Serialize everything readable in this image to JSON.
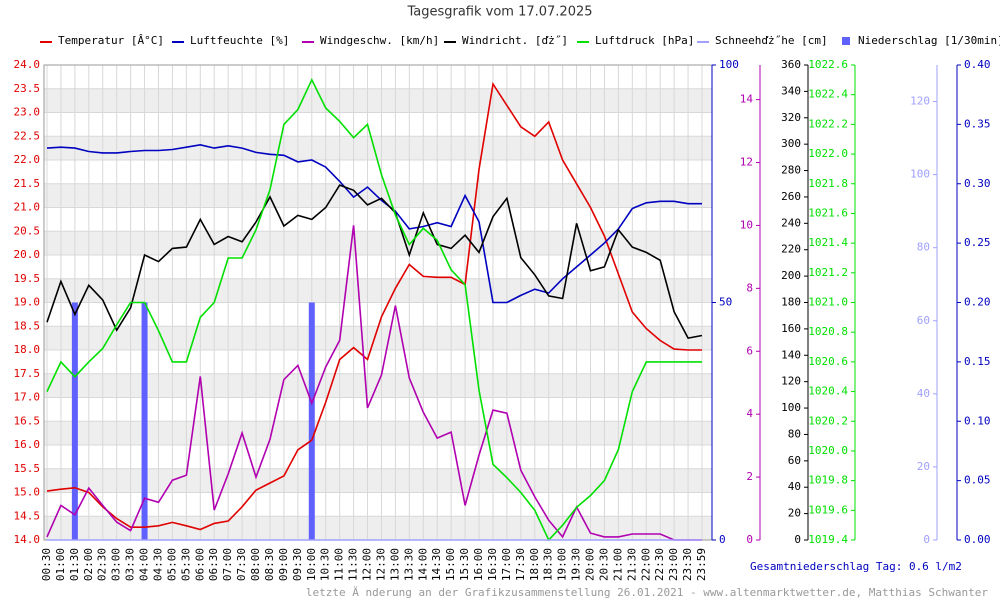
{
  "chart_data": {
    "type": "line",
    "title": "Tagesgrafik vom 17.07.2025",
    "total_label": "Gesamtniederschlag Tag: 0.6 l/m2",
    "footer": "letzte Ä nderung an der Grafikzusammenstellung 26.01.2021 - www.altenmarktwetter.de, Matthias Schwanter",
    "grid": true,
    "categories": [
      "00:30",
      "01:00",
      "01:30",
      "02:00",
      "02:30",
      "03:00",
      "03:30",
      "04:00",
      "04:30",
      "05:00",
      "05:30",
      "06:00",
      "06:30",
      "07:00",
      "07:30",
      "08:00",
      "08:30",
      "09:00",
      "09:30",
      "10:00",
      "10:30",
      "11:00",
      "11:30",
      "12:00",
      "12:30",
      "13:00",
      "13:30",
      "14:00",
      "14:30",
      "15:00",
      "15:30",
      "16:00",
      "16:30",
      "17:00",
      "17:30",
      "18:00",
      "18:30",
      "19:00",
      "19:30",
      "20:00",
      "20:30",
      "21:00",
      "21:30",
      "22:00",
      "22:30",
      "23:00",
      "23:30",
      "23:59"
    ],
    "ylim": [
      14,
      24
    ],
    "yticks": [
      {
        "value": 14,
        "label": "14.0"
      },
      {
        "value": 14.5,
        "label": "14.5"
      },
      {
        "value": 15,
        "label": "15.0"
      },
      {
        "value": 15.5,
        "label": "15.5"
      },
      {
        "value": 16,
        "label": "16.0"
      },
      {
        "value": 16.5,
        "label": "16.5"
      },
      {
        "value": 17,
        "label": "17.0"
      },
      {
        "value": 17.5,
        "label": "17.5"
      },
      {
        "value": 18,
        "label": "18.0"
      },
      {
        "value": 18.5,
        "label": "18.5"
      },
      {
        "value": 19,
        "label": "19.0"
      },
      {
        "value": 19.5,
        "label": "19.5"
      },
      {
        "value": 20,
        "label": "20.0"
      },
      {
        "value": 20.5,
        "label": "20.5"
      },
      {
        "value": 21,
        "label": "21.0"
      },
      {
        "value": 21.5,
        "label": "21.5"
      },
      {
        "value": 22,
        "label": "22.0"
      },
      {
        "value": 22.5,
        "label": "22.5"
      },
      {
        "value": 23,
        "label": "23.0"
      },
      {
        "value": 23.5,
        "label": "23.5"
      },
      {
        "value": 24,
        "label": "24.0"
      }
    ],
    "y2lim": [
      0,
      100
    ],
    "y2ticks": [
      0,
      50,
      100
    ],
    "y3lim": [
      0,
      15.1
    ],
    "y3ticks": [
      0,
      2,
      4,
      6,
      8,
      10,
      12,
      14
    ],
    "y4lim": [
      0,
      360
    ],
    "y4ticks": [
      0,
      20,
      40,
      60,
      80,
      100,
      120,
      140,
      160,
      180,
      200,
      220,
      240,
      260,
      280,
      300,
      320,
      340,
      360
    ],
    "y5lim": [
      1019.4,
      1022.6
    ],
    "y5ticks": [
      1019.4,
      1019.6,
      1019.8,
      {
        "value": 1020,
        "label": "1020.0"
      },
      1020.2,
      1020.4,
      1020.6,
      1020.8,
      {
        "value": 1021,
        "label": "1021.0"
      },
      1021.2,
      1021.4,
      1021.6,
      1021.8,
      {
        "value": 1022,
        "label": "1022.0"
      },
      1022.2,
      1022.4,
      1022.6
    ],
    "y6lim": [
      0,
      130
    ],
    "y6ticks": [
      0,
      20,
      40,
      60,
      80,
      100,
      120
    ],
    "y7lim": [
      0,
      0.4
    ],
    "y7ticks": [
      {
        "value": 0,
        "label": "0.00"
      },
      {
        "value": 0.05,
        "label": "0.05"
      },
      {
        "value": 0.1,
        "label": "0.10"
      },
      {
        "value": 0.15,
        "label": "0.15"
      },
      {
        "value": 0.2,
        "label": "0.20"
      },
      {
        "value": 0.25,
        "label": "0.25"
      },
      {
        "value": 0.3,
        "label": "0.30"
      },
      {
        "value": 0.35,
        "label": "0.35"
      },
      {
        "value": 0.4,
        "label": "0.40"
      }
    ],
    "series": [
      {
        "name": "Temperatur [Â°C]",
        "color": "#e00000",
        "axis": "y",
        "values": [
          15.03,
          15.07,
          15.1,
          15.0,
          14.7,
          14.45,
          14.27,
          14.27,
          14.3,
          14.37,
          14.3,
          14.22,
          14.35,
          14.4,
          14.7,
          15.05,
          15.2,
          15.35,
          15.9,
          16.1,
          16.9,
          17.8,
          18.05,
          17.8,
          18.7,
          19.3,
          19.8,
          19.55,
          19.53,
          19.53,
          19.38,
          21.8,
          23.6,
          23.15,
          22.7,
          22.5,
          22.8,
          22.0,
          21.5,
          21.0,
          20.4,
          19.6,
          18.8,
          18.45,
          18.2,
          18.02,
          18.0,
          18.0
        ]
      },
      {
        "name": "Luftfeuchte [%]",
        "color": "#0000c0",
        "axis": "y2",
        "values": [
          82.5,
          82.7,
          82.5,
          81.8,
          81.5,
          81.5,
          81.8,
          82.0,
          82.0,
          82.2,
          82.7,
          83.2,
          82.5,
          83.0,
          82.5,
          81.6,
          81.2,
          81.0,
          79.6,
          80.0,
          78.5,
          75.5,
          72.2,
          74.3,
          71.5,
          69.2,
          65.5,
          66.0,
          66.8,
          66.0,
          72.5,
          67.0,
          50.0,
          50.0,
          51.5,
          52.8,
          52.0,
          55.0,
          57.5,
          60.0,
          62.5,
          65.5,
          69.8,
          71.0,
          71.3,
          71.3,
          70.8,
          70.8
        ]
      },
      {
        "name": "Windgeschw. [km/h]",
        "color": "#b000b0",
        "axis": "y3",
        "values": [
          0.1,
          1.1,
          0.8,
          1.65,
          1.1,
          0.57,
          0.3,
          1.33,
          1.2,
          1.9,
          2.06,
          5.2,
          0.95,
          2.1,
          3.4,
          2.0,
          3.2,
          5.1,
          5.55,
          4.35,
          5.5,
          6.35,
          10.0,
          4.2,
          5.25,
          7.45,
          5.15,
          4.06,
          3.24,
          3.43,
          1.1,
          2.7,
          4.13,
          4.03,
          2.22,
          1.37,
          0.63,
          0.1,
          1.05,
          0.22,
          0.1,
          0.1,
          0.19,
          0.19,
          0.19,
          0,
          0,
          0
        ]
      },
      {
        "name": "Windricht. [ďż˝]",
        "color": "#000000",
        "axis": "y4",
        "values": [
          165,
          196,
          171,
          193,
          182,
          159,
          176,
          216,
          211,
          221,
          222,
          243,
          224,
          230,
          226,
          241,
          260,
          238,
          246,
          243,
          252,
          269,
          265,
          254,
          259,
          248,
          216,
          248,
          224,
          221,
          231,
          218,
          245,
          259,
          214,
          201,
          185,
          183,
          240,
          204,
          207,
          235,
          222,
          218,
          212,
          173,
          153,
          155
        ]
      },
      {
        "name": "Luftdruck [hPa]",
        "color": "#00e000",
        "axis": "y5",
        "values": [
          1020.4,
          1020.6,
          1020.5,
          1020.6,
          1020.69,
          1020.85,
          1021.0,
          1021.0,
          1020.81,
          1020.6,
          1020.6,
          1020.9,
          1021.0,
          1021.3,
          1021.3,
          1021.49,
          1021.76,
          1022.2,
          1022.3,
          1022.5,
          1022.31,
          1022.22,
          1022.11,
          1022.2,
          1021.86,
          1021.59,
          1021.39,
          1021.5,
          1021.42,
          1021.22,
          1021.12,
          1020.41,
          1019.91,
          1019.82,
          1019.72,
          1019.6,
          1019.4,
          1019.5,
          1019.62,
          1019.7,
          1019.8,
          1020.01,
          1020.4,
          1020.6,
          1020.6,
          1020.6,
          1020.6,
          1020.6
        ]
      },
      {
        "name": "Schneehďż˝he [cm]",
        "color": "#a0a0ff",
        "axis": "y6",
        "values": [
          0,
          0,
          0,
          0,
          0,
          0,
          0,
          0,
          0,
          0,
          0,
          0,
          0,
          0,
          0,
          0,
          0,
          0,
          0,
          0,
          0,
          0,
          0,
          0,
          0,
          0,
          0,
          0,
          0,
          0,
          0,
          0,
          0,
          0,
          0,
          0,
          0,
          0,
          0,
          0,
          0,
          0,
          0,
          0,
          0,
          0,
          0,
          0
        ]
      },
      {
        "name": "Niederschlag [1/30min]",
        "color": "#6060ff",
        "axis": "y7",
        "type": "bar",
        "values": [
          0,
          0,
          0.2,
          0,
          0,
          0,
          0,
          0.2,
          0,
          0,
          0,
          0,
          0,
          0,
          0,
          0,
          0,
          0,
          0,
          0.2,
          0,
          0,
          0,
          0,
          0,
          0,
          0,
          0,
          0,
          0,
          0,
          0,
          0,
          0,
          0,
          0,
          0,
          0,
          0,
          0,
          0,
          0,
          0,
          0,
          0,
          0,
          0,
          0
        ]
      }
    ]
  }
}
